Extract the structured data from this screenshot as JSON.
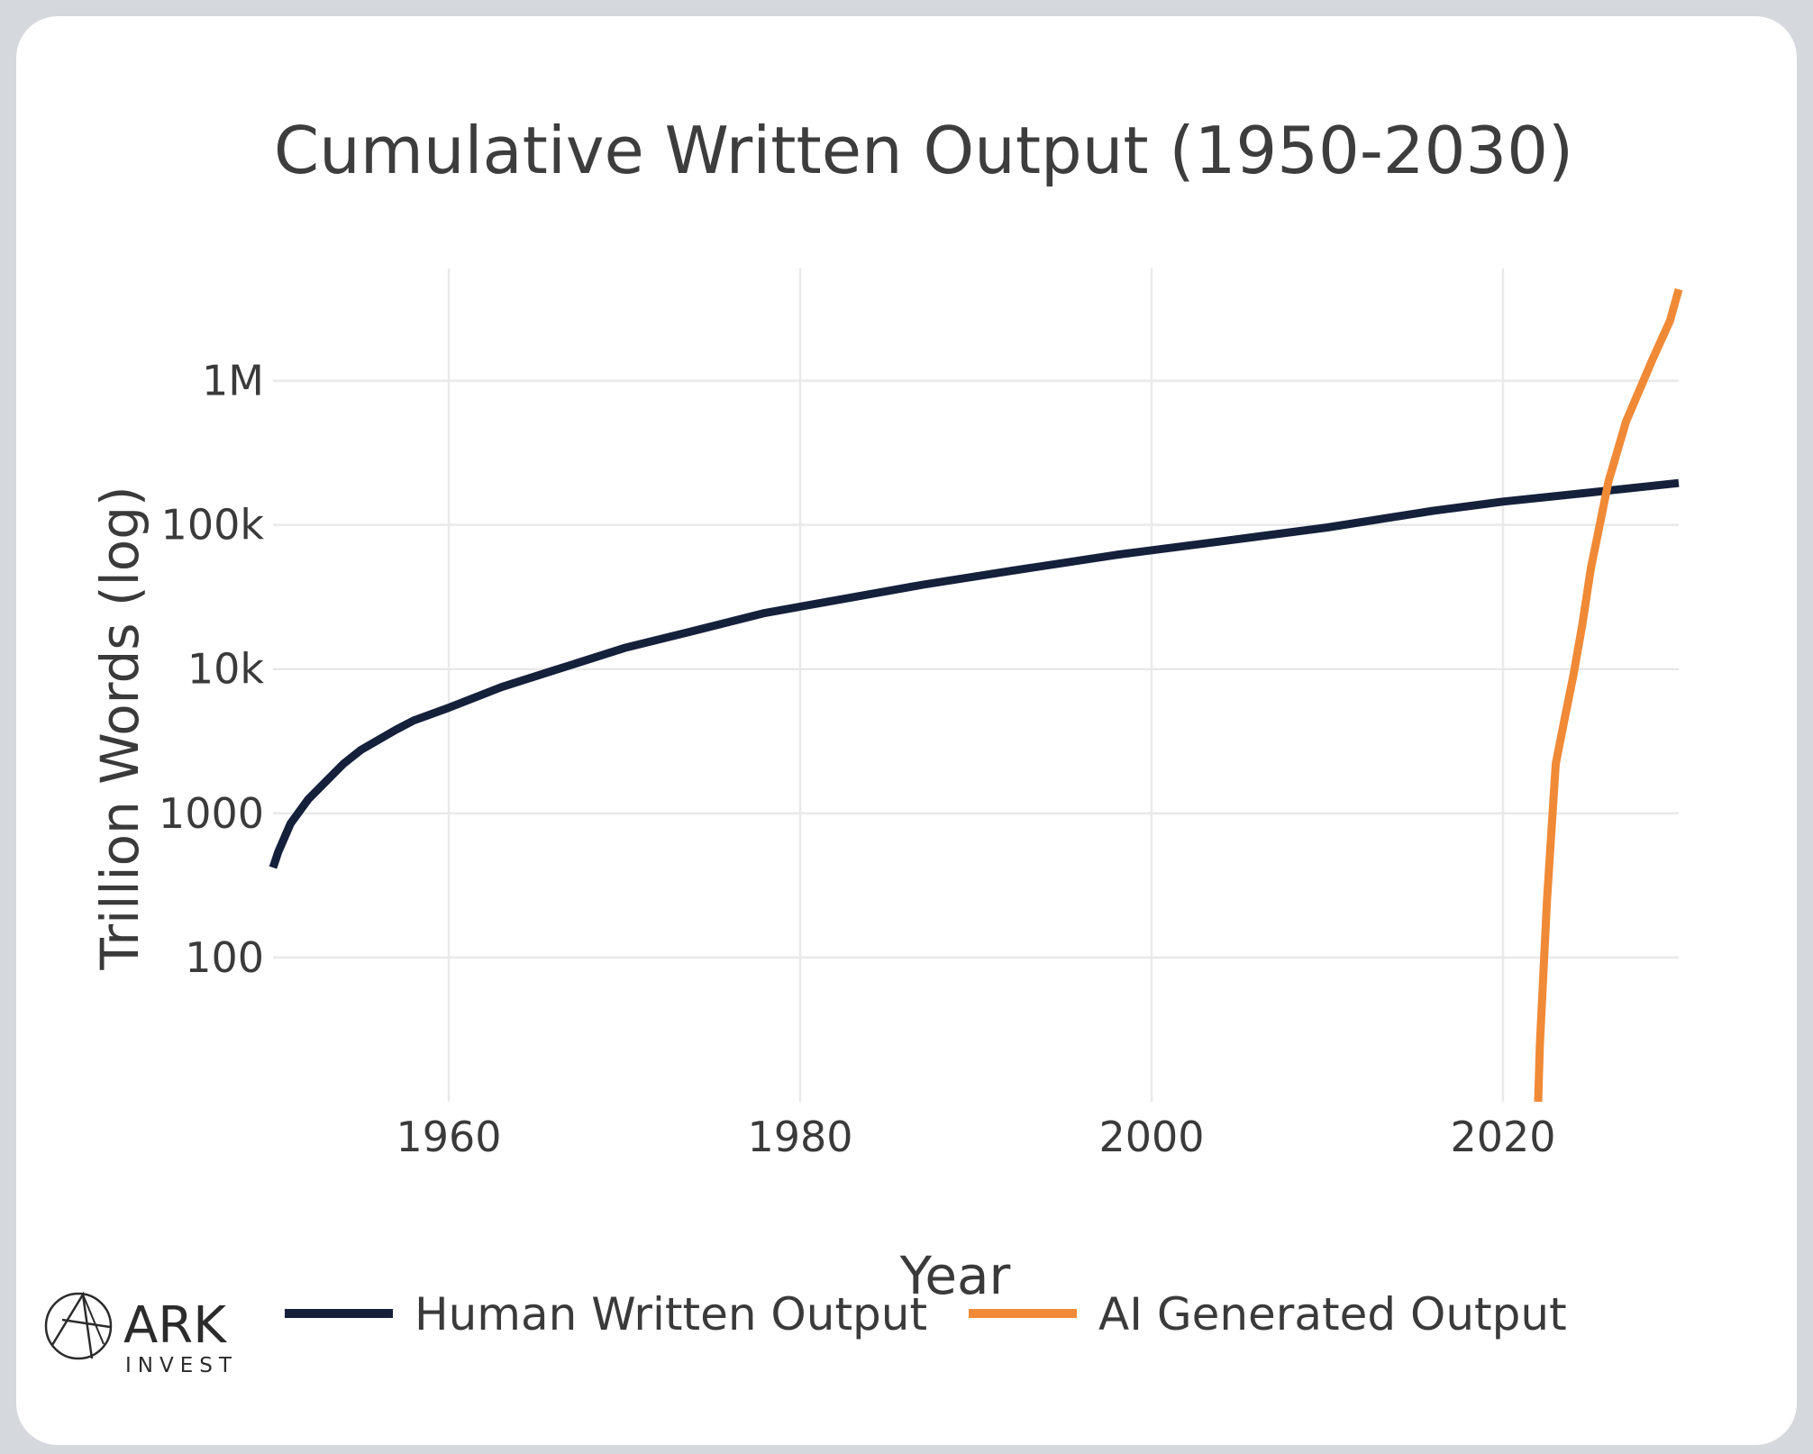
{
  "chart_data": {
    "type": "line",
    "title": "Cumulative Written Output (1950-2030)",
    "xlabel": "Year",
    "ylabel": "Trillion Words (log)",
    "xlim": [
      1950,
      2030
    ],
    "ylim": [
      10,
      6000000
    ],
    "yscale": "log",
    "grid": true,
    "legend_position": "bottom",
    "x_ticks": [
      1960,
      1980,
      2000,
      2020
    ],
    "x_tick_labels": [
      "1960",
      "1980",
      "2000",
      "2020"
    ],
    "y_ticks": [
      100,
      1000,
      10000,
      100000,
      1000000
    ],
    "y_tick_labels": [
      "100",
      "1000",
      "10k",
      "100k",
      "1M"
    ],
    "series": [
      {
        "name": "Human Written Output",
        "color": "#15203b",
        "points": [
          [
            1950,
            420
          ],
          [
            1950.3,
            540
          ],
          [
            1951,
            850
          ],
          [
            1952,
            1250
          ],
          [
            1954,
            2200
          ],
          [
            1955,
            2750
          ],
          [
            1957,
            3800
          ],
          [
            1958,
            4400
          ],
          [
            1960,
            5400
          ],
          [
            1963,
            7500
          ],
          [
            1966,
            9800
          ],
          [
            1970,
            14000
          ],
          [
            1974,
            18500
          ],
          [
            1978,
            24500
          ],
          [
            1982,
            30000
          ],
          [
            1987,
            38500
          ],
          [
            1992,
            48000
          ],
          [
            1998,
            62000
          ],
          [
            2004,
            77000
          ],
          [
            2010,
            96000
          ],
          [
            2016,
            125000
          ],
          [
            2020,
            145000
          ],
          [
            2025,
            168000
          ],
          [
            2030,
            195000
          ]
        ]
      },
      {
        "name": "AI Generated Output",
        "color": "#f08a37",
        "points": [
          [
            2022,
            10
          ],
          [
            2022.1,
            25
          ],
          [
            2022.5,
            250
          ],
          [
            2023,
            2200
          ],
          [
            2023.5,
            4500
          ],
          [
            2024,
            9000
          ],
          [
            2024.5,
            20000
          ],
          [
            2025,
            50000
          ],
          [
            2025.5,
            100000
          ],
          [
            2026,
            200000
          ],
          [
            2027,
            520000
          ],
          [
            2028.5,
            1400000
          ],
          [
            2029.5,
            2600000
          ],
          [
            2030,
            4300000
          ]
        ]
      }
    ]
  },
  "brand": {
    "name": "ARK",
    "sub": "INVEST"
  }
}
